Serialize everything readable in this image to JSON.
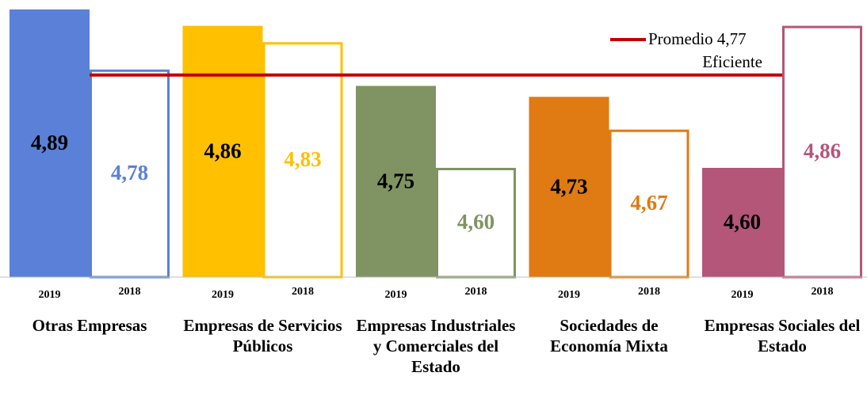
{
  "chart_data": {
    "type": "bar",
    "categories": [
      "Otras Empresas",
      "Empresas de Servicios Públicos",
      "Empresas Industriales y Comerciales del Estado",
      "Sociedades de Economía Mixta",
      "Empresas Sociales del Estado"
    ],
    "colors": [
      "#5b80d8",
      "#ffc000",
      "#7f9462",
      "#df7b12",
      "#b45677"
    ],
    "series": [
      {
        "name": "2019",
        "filled": true,
        "values": [
          4.89,
          4.86,
          4.75,
          4.73,
          4.6
        ],
        "value_labels": [
          "4,89",
          "4,86",
          "4,75",
          "4,73",
          "4,60"
        ]
      },
      {
        "name": "2018",
        "filled": false,
        "values": [
          4.78,
          4.83,
          4.6,
          4.67,
          4.86
        ],
        "value_labels": [
          "4,78",
          "4,83",
          "4,60",
          "4,67",
          "4,86"
        ]
      }
    ],
    "ylim": [
      4.4,
      4.9
    ],
    "reference_line": {
      "value": 4.77,
      "label": "Promedio 4,77",
      "sublabel": "Eficiente",
      "color": "#c00000"
    }
  }
}
